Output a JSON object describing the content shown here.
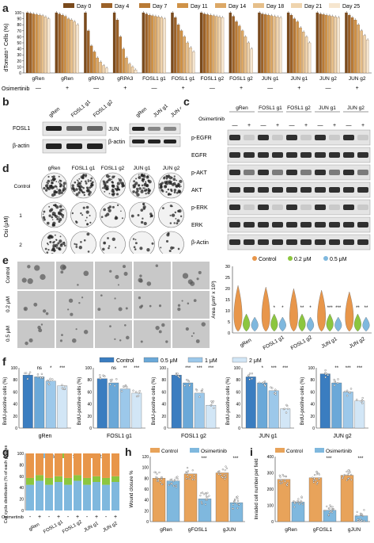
{
  "panels": {
    "a": "a",
    "b": "b",
    "c": "c",
    "d": "d",
    "e": "e",
    "f": "f",
    "g": "g",
    "h": "h",
    "i": "i"
  },
  "panel_a": {
    "legend": [
      "Day 0",
      "Day 4",
      "Day 7",
      "Day 11",
      "Day 14",
      "Day 18",
      "Day 21",
      "Day 25"
    ],
    "colors": [
      "#7a4a1c",
      "#9b6128",
      "#b97a35",
      "#cf9247",
      "#dca866",
      "#e6bf8a",
      "#efd4ae",
      "#f6e6cf"
    ],
    "ylabel": "dTomato⁺ Cells (%)",
    "yticks": [
      "0",
      "10",
      "20",
      "30",
      "40",
      "50",
      "60",
      "70",
      "80",
      "90",
      "100"
    ],
    "row_label": "Osimertinib",
    "groups": [
      "gRen",
      "gRen",
      "gRPA3",
      "gRPA3",
      "FOSL1 g1",
      "FOSL1 g1",
      "FOSL1 g2",
      "FOSL1 g2",
      "JUN g1",
      "JUN g1",
      "JUN g2",
      "JUN g2"
    ],
    "osi": [
      "—",
      "+",
      "—",
      "+",
      "—",
      "+",
      "—",
      "+",
      "—",
      "+",
      "—",
      "+"
    ]
  },
  "chart_data": {
    "type": "bar",
    "categories": [
      "gRen —",
      "gRen +",
      "gRPA3 —",
      "gRPA3 +",
      "FOSL1 g1 —",
      "FOSL1 g1 +",
      "FOSL1 g2 —",
      "FOSL1 g2 +",
      "JUN g1 —",
      "JUN g1 +",
      "JUN g2 —",
      "JUN g2 +"
    ],
    "series": [
      {
        "name": "Day 0",
        "values": [
          100,
          100,
          100,
          100,
          100,
          100,
          100,
          100,
          100,
          100,
          100,
          100
        ]
      },
      {
        "name": "Day 4",
        "values": [
          99,
          98,
          70,
          88,
          98,
          92,
          98,
          94,
          98,
          96,
          98,
          96
        ]
      },
      {
        "name": "Day 7",
        "values": [
          98,
          96,
          45,
          60,
          96,
          80,
          97,
          85,
          97,
          90,
          97,
          92
        ]
      },
      {
        "name": "Day 11",
        "values": [
          97,
          94,
          35,
          40,
          95,
          70,
          96,
          78,
          96,
          85,
          96,
          88
        ]
      },
      {
        "name": "Day 14",
        "values": [
          96,
          90,
          25,
          25,
          94,
          60,
          95,
          70,
          95,
          75,
          95,
          80
        ]
      },
      {
        "name": "Day 18",
        "values": [
          95,
          88,
          18,
          15,
          93,
          50,
          94,
          60,
          94,
          68,
          94,
          70
        ]
      },
      {
        "name": "Day 21",
        "values": [
          93,
          85,
          12,
          10,
          92,
          42,
          93,
          50,
          93,
          60,
          93,
          62
        ]
      },
      {
        "name": "Day 25",
        "values": [
          90,
          80,
          8,
          5,
          90,
          35,
          92,
          40,
          92,
          50,
          92,
          55
        ]
      }
    ],
    "ylabel": "dTomato⁺ Cells (%)",
    "ylim": [
      0,
      100
    ]
  },
  "panel_b": {
    "left_cols": [
      "gRen",
      "FOSL1 g1",
      "FOSL1 g2"
    ],
    "left_rows": [
      "FOSL1",
      "β-actin"
    ],
    "right_cols": [
      "gRen",
      "JUN g1",
      "JUN g2"
    ],
    "right_rows": [
      "JUN",
      "β-actin"
    ]
  },
  "panel_c": {
    "cols": [
      "gRen",
      "FOSL1 g1",
      "FOSL1 g2",
      "JUN g1",
      "JUN g2"
    ],
    "osi_label": "Osimertinib",
    "osi": [
      "—",
      "+",
      "—",
      "+",
      "—",
      "+",
      "—",
      "+",
      "—",
      "+"
    ],
    "rows": [
      "p-EGFR",
      "EGFR",
      "p-AKT",
      "AKT",
      "p-ERK",
      "ERK",
      "β-Actin"
    ]
  },
  "panel_d": {
    "cols": [
      "gRen",
      "FOSL1 g1",
      "FOSL1 g2",
      "JUN g1",
      "JUN g2"
    ],
    "rows": [
      "Control",
      "1",
      "2"
    ],
    "axis": "Osi (μM)"
  },
  "panel_e": {
    "rows": [
      "Control",
      "0.2 μM",
      "0.5 μM"
    ],
    "legend": [
      "Control",
      "0.2 μM",
      "0.5 μM"
    ],
    "ylabel": "Area (μm² x 10³)",
    "yticks": [
      "0",
      "5",
      "10",
      "15",
      "20",
      "25",
      "30"
    ],
    "groups": [
      "gRen",
      "FOSL1 g1",
      "FOSL1 g2",
      "JUN g1",
      "JUN g2"
    ],
    "sig": [
      "*",
      "*",
      "**",
      "*",
      "***",
      "***",
      "**",
      "**"
    ]
  },
  "panel_f": {
    "legend": [
      "Control",
      "0.5 μM",
      "1 μM",
      "2 μM"
    ],
    "ylabel": "BrdU-positive cells (%)",
    "yticks": [
      "0",
      "20",
      "40",
      "60",
      "80",
      "100"
    ],
    "charts": [
      {
        "name": "gRen",
        "sig": [
          "ns",
          "*",
          "***"
        ],
        "values": [
          88,
          85,
          78,
          70
        ]
      },
      {
        "name": "FOSL1 g1",
        "sig": [
          "ns",
          "**",
          "***"
        ],
        "values": [
          82,
          75,
          65,
          58
        ]
      },
      {
        "name": "FOSL1 g2",
        "sig": [
          "***",
          "***",
          "***"
        ],
        "values": [
          88,
          75,
          58,
          38
        ]
      },
      {
        "name": "JUN g1",
        "sig": [
          "*",
          "***",
          "***"
        ],
        "values": [
          85,
          75,
          62,
          32
        ]
      },
      {
        "name": "JUN g2",
        "sig": [
          "**",
          "***",
          "***"
        ],
        "values": [
          90,
          75,
          60,
          45
        ]
      }
    ]
  },
  "panel_g": {
    "legend": [
      "G1",
      "S",
      "G2/M"
    ],
    "ylabel": "Cell cycle distribution (% of each phases)",
    "yticks": [
      "0",
      "20",
      "40",
      "60",
      "80",
      "100"
    ],
    "osi_label": "Osimertinib",
    "osi": [
      "-",
      "+",
      "-",
      "+",
      "-",
      "+",
      "-",
      "+",
      "-",
      "+"
    ],
    "groups": [
      "gRen",
      "FOSL1 g1",
      "FOSL1 g2",
      "JUN g1",
      "JUN g2"
    ],
    "g1": [
      45,
      52,
      45,
      50,
      45,
      52,
      45,
      50,
      45,
      50
    ],
    "s": [
      12,
      10,
      12,
      10,
      12,
      10,
      12,
      10,
      12,
      10
    ]
  },
  "panel_h": {
    "legend": [
      "Control",
      "Osimertinib"
    ],
    "ylabel": "Wound closure %",
    "yticks": [
      "0",
      "20",
      "40",
      "60",
      "80",
      "100",
      "120"
    ],
    "groups": [
      "gRen",
      "gFOSL1",
      "gJUN"
    ],
    "sig": [
      "***",
      "***"
    ],
    "control": [
      80,
      88,
      90
    ],
    "osi": [
      75,
      42,
      35
    ]
  },
  "panel_i": {
    "legend": [
      "Control",
      "Osimertinib"
    ],
    "ylabel": "Invaded cell number per field",
    "yticks": [
      "0",
      "100",
      "200",
      "300",
      "400"
    ],
    "groups": [
      "gRen",
      "gFOSL1",
      "gJUN"
    ],
    "sig": [
      "***",
      "***"
    ],
    "control": [
      260,
      270,
      285
    ],
    "osi": [
      120,
      70,
      35
    ]
  }
}
